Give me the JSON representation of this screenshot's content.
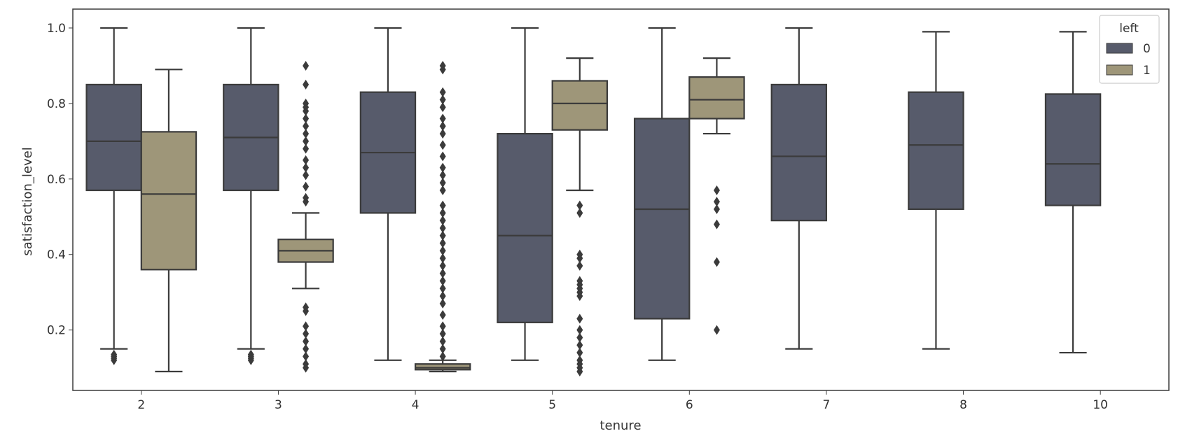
{
  "chart_data": {
    "type": "boxplot",
    "xlabel": "tenure",
    "ylabel": "satisfaction_level",
    "categories": [
      "2",
      "3",
      "4",
      "5",
      "6",
      "7",
      "8",
      "10"
    ],
    "yticks": [
      "0.2",
      "0.4",
      "0.6",
      "0.8",
      "1.0"
    ],
    "ylim": [
      0.04,
      1.05
    ],
    "grid": false,
    "legend": {
      "title": "left",
      "placement": "top-right",
      "entries": [
        "0",
        "1"
      ]
    },
    "colors": {
      "0": "#575b6b",
      "1": "#9e9679",
      "line": "#3b3b3b"
    },
    "series": [
      {
        "name": "0",
        "boxes": [
          {
            "category": "2",
            "whislo": 0.15,
            "q1": 0.57,
            "med": 0.7,
            "q3": 0.85,
            "whishi": 1.0,
            "fliers": [
              0.12,
              0.125,
              0.13,
              0.135
            ]
          },
          {
            "category": "3",
            "whislo": 0.15,
            "q1": 0.57,
            "med": 0.71,
            "q3": 0.85,
            "whishi": 1.0,
            "fliers": [
              0.12,
              0.125,
              0.13,
              0.135
            ]
          },
          {
            "category": "4",
            "whislo": 0.12,
            "q1": 0.51,
            "med": 0.67,
            "q3": 0.83,
            "whishi": 1.0,
            "fliers": []
          },
          {
            "category": "5",
            "whislo": 0.12,
            "q1": 0.22,
            "med": 0.45,
            "q3": 0.72,
            "whishi": 1.0,
            "fliers": []
          },
          {
            "category": "6",
            "whislo": 0.12,
            "q1": 0.23,
            "med": 0.52,
            "q3": 0.76,
            "whishi": 1.0,
            "fliers": []
          },
          {
            "category": "7",
            "whislo": 0.15,
            "q1": 0.49,
            "med": 0.66,
            "q3": 0.85,
            "whishi": 1.0,
            "fliers": []
          },
          {
            "category": "8",
            "whislo": 0.15,
            "q1": 0.52,
            "med": 0.69,
            "q3": 0.83,
            "whishi": 0.99,
            "fliers": []
          },
          {
            "category": "10",
            "whislo": 0.14,
            "q1": 0.53,
            "med": 0.64,
            "q3": 0.825,
            "whishi": 0.99,
            "fliers": []
          }
        ]
      },
      {
        "name": "1",
        "boxes": [
          {
            "category": "2",
            "whislo": 0.09,
            "q1": 0.36,
            "med": 0.56,
            "q3": 0.725,
            "whishi": 0.89,
            "fliers": []
          },
          {
            "category": "3",
            "whislo": 0.31,
            "q1": 0.38,
            "med": 0.41,
            "q3": 0.44,
            "whishi": 0.51,
            "fliers": [
              0.1,
              0.11,
              0.13,
              0.15,
              0.17,
              0.19,
              0.21,
              0.25,
              0.26,
              0.54,
              0.55,
              0.58,
              0.61,
              0.63,
              0.65,
              0.68,
              0.7,
              0.72,
              0.74,
              0.76,
              0.78,
              0.79,
              0.8,
              0.85,
              0.9
            ]
          },
          {
            "category": "4",
            "whislo": 0.09,
            "q1": 0.095,
            "med": 0.1,
            "q3": 0.11,
            "whishi": 0.12,
            "fliers": [
              0.13,
              0.15,
              0.17,
              0.19,
              0.21,
              0.24,
              0.27,
              0.29,
              0.31,
              0.33,
              0.35,
              0.37,
              0.39,
              0.41,
              0.43,
              0.45,
              0.47,
              0.49,
              0.51,
              0.53,
              0.57,
              0.59,
              0.61,
              0.63,
              0.66,
              0.69,
              0.72,
              0.74,
              0.76,
              0.79,
              0.81,
              0.83,
              0.89,
              0.9
            ]
          },
          {
            "category": "5",
            "whislo": 0.57,
            "q1": 0.73,
            "med": 0.8,
            "q3": 0.86,
            "whishi": 0.92,
            "fliers": [
              0.09,
              0.1,
              0.11,
              0.12,
              0.14,
              0.16,
              0.18,
              0.2,
              0.23,
              0.29,
              0.3,
              0.31,
              0.32,
              0.33,
              0.37,
              0.39,
              0.4,
              0.51,
              0.53
            ]
          },
          {
            "category": "6",
            "whislo": 0.72,
            "q1": 0.76,
            "med": 0.81,
            "q3": 0.87,
            "whishi": 0.92,
            "fliers": [
              0.2,
              0.38,
              0.48,
              0.52,
              0.54,
              0.57
            ]
          },
          {
            "category": "7",
            "none": true
          },
          {
            "category": "8",
            "none": true
          },
          {
            "category": "10",
            "none": true
          }
        ]
      }
    ]
  }
}
